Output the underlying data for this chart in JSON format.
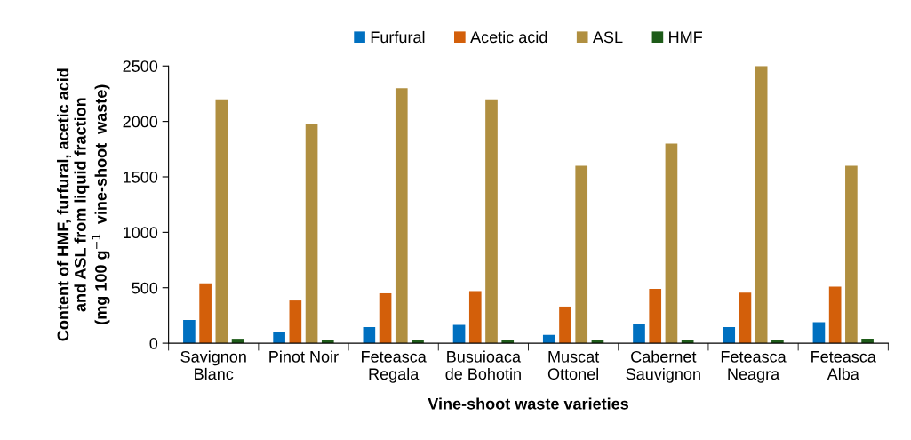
{
  "chart_data": {
    "type": "bar",
    "xlabel": "Vine-shoot waste varieties",
    "ylabel": "Content of HMF, furfural, acetic acid\nand ASL from liquid fraction\n(mg 100 g$^{−1}$  vine-shoot  waste)",
    "categories": [
      "Savignon\nBlanc",
      "Pinot Noir",
      "Feteasca\nRegala",
      "Busuioaca\nde Bohotin",
      "Muscat\nOttonel",
      "Cabernet\nSauvignon",
      "Feteasca\nNeagra",
      "Feteasca\nAlba"
    ],
    "series": [
      {
        "name": "Furfural",
        "color": "#0070c0",
        "values": [
          210,
          105,
          145,
          165,
          75,
          175,
          145,
          190
        ]
      },
      {
        "name": "Acetic acid",
        "color": "#d35f0a",
        "values": [
          540,
          385,
          450,
          470,
          330,
          490,
          455,
          510
        ]
      },
      {
        "name": "ASL",
        "color": "#b08f40",
        "values": [
          2200,
          1980,
          2300,
          2200,
          1600,
          1800,
          2500,
          1600
        ]
      },
      {
        "name": "HMF",
        "color": "#1e5b19",
        "values": [
          40,
          30,
          25,
          30,
          25,
          30,
          30,
          40
        ]
      }
    ],
    "ylim": [
      0,
      2500
    ],
    "yticks": [
      0,
      500,
      1000,
      1500,
      2000,
      2500
    ],
    "grid": false,
    "legend": "top"
  }
}
